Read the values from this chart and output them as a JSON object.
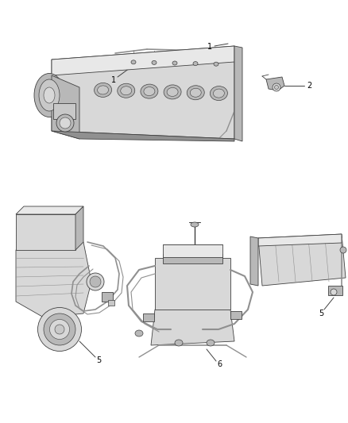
{
  "bg_color": "#ffffff",
  "line_color": "#404040",
  "label_color": "#000000",
  "fig_width": 4.39,
  "fig_height": 5.33,
  "dpi": 100,
  "engine_gray": "#c8c8c8",
  "engine_gray2": "#b8b8b8",
  "engine_gray3": "#d8d8d8",
  "engine_gray_dark": "#909090",
  "engine_gray_light": "#e8e8e8",
  "harness_gray": "#a0a0a0"
}
